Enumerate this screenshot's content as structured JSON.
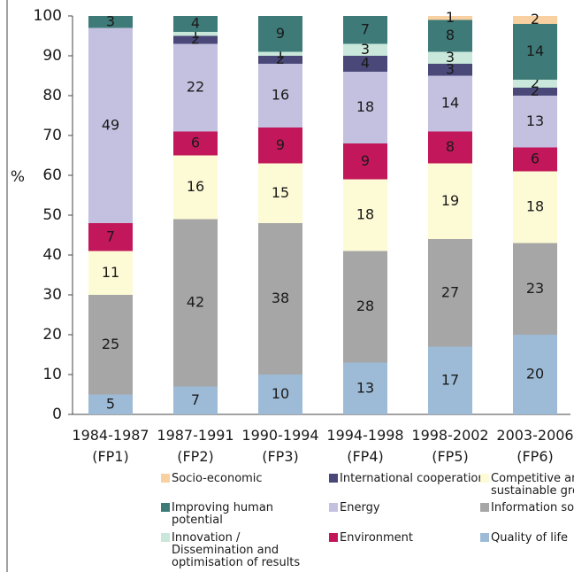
{
  "chart_data": {
    "type": "stacked_bar",
    "y_label": "%",
    "categories": [
      "1984-1987 (FP1)",
      "1987-1991 (FP2)",
      "1990-1994 (FP3)",
      "1994-1998 (FP4)",
      "1998-2002 (FP5)",
      "2003-2006 (FP6)"
    ],
    "series": [
      {
        "name": "Quality of life",
        "color": "#9dbbd6",
        "values": [
          5,
          7,
          10,
          13,
          17,
          20
        ]
      },
      {
        "name": "Information society",
        "color": "#a6a6a6",
        "values": [
          25,
          42,
          38,
          28,
          27,
          23
        ]
      },
      {
        "name": "Competitive and sustainable growth",
        "color": "#fdfbd5",
        "values": [
          11,
          16,
          15,
          18,
          19,
          18
        ]
      },
      {
        "name": "Environment",
        "color": "#c2185b",
        "values": [
          7,
          6,
          9,
          9,
          8,
          6
        ]
      },
      {
        "name": "Energy",
        "color": "#c3c1df",
        "values": [
          49,
          22,
          16,
          18,
          14,
          13
        ]
      },
      {
        "name": "International cooperation",
        "color": "#4a4878",
        "values": [
          null,
          2,
          2,
          4,
          3,
          2
        ]
      },
      {
        "name": "Innovation / Dissemination and optimisation of results",
        "color": "#c9e7da",
        "values": [
          null,
          1,
          1,
          3,
          3,
          2
        ]
      },
      {
        "name": "Improving human potential",
        "color": "#3d7a78",
        "values": [
          3,
          4,
          9,
          7,
          8,
          14
        ]
      },
      {
        "name": "Socio-economic",
        "color": "#f8d0a2",
        "values": [
          null,
          null,
          null,
          null,
          1,
          2
        ]
      }
    ],
    "ylim": [
      0,
      100
    ],
    "yticks": [
      0,
      10,
      20,
      30,
      40,
      50,
      60,
      70,
      80,
      90,
      100
    ],
    "grid": false
  }
}
